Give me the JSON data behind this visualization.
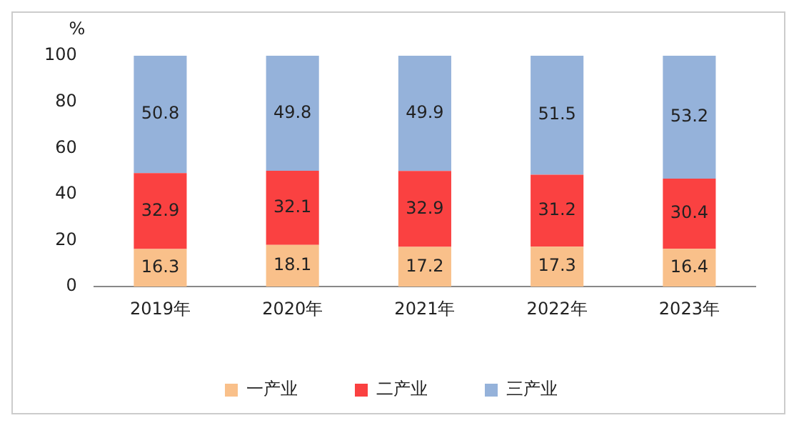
{
  "chart_data": {
    "type": "bar",
    "stacked": true,
    "ylabel": "%",
    "categories": [
      "2019年",
      "2020年",
      "2021年",
      "2022年",
      "2023年"
    ],
    "series": [
      {
        "name": "一产业",
        "color": "#f9c08a",
        "values": [
          16.3,
          18.1,
          17.2,
          17.3,
          16.4
        ]
      },
      {
        "name": "二产业",
        "color": "#fa4141",
        "values": [
          32.9,
          32.1,
          32.9,
          31.2,
          30.4
        ]
      },
      {
        "name": "三产业",
        "color": "#95b2da",
        "values": [
          50.8,
          49.8,
          49.9,
          51.5,
          53.2
        ]
      }
    ],
    "ylim": [
      0,
      100
    ],
    "yticks": [
      0,
      20,
      40,
      60,
      80,
      100
    ],
    "grid": false,
    "legend": "bottom",
    "data_labels": true
  }
}
